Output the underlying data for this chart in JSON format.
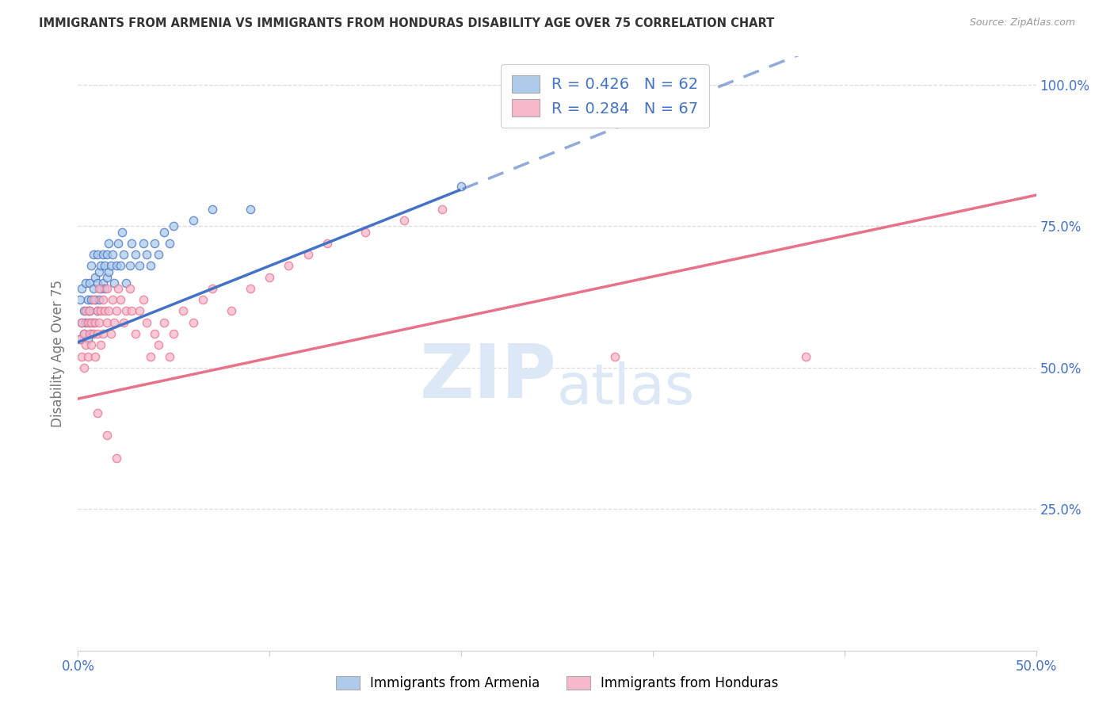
{
  "title": "IMMIGRANTS FROM ARMENIA VS IMMIGRANTS FROM HONDURAS DISABILITY AGE OVER 75 CORRELATION CHART",
  "source": "Source: ZipAtlas.com",
  "ylabel": "Disability Age Over 75",
  "xlim": [
    0.0,
    0.5
  ],
  "ylim": [
    0.0,
    1.05
  ],
  "legend_labels": [
    "Immigrants from Armenia",
    "Immigrants from Honduras"
  ],
  "R_armenia": 0.426,
  "N_armenia": 62,
  "R_honduras": 0.284,
  "N_honduras": 67,
  "color_armenia": "#aecbea",
  "color_honduras": "#f7b8cc",
  "line_color_armenia": "#4472c4",
  "line_color_honduras": "#e8728a",
  "scatter_alpha": 0.75,
  "scatter_size": 55,
  "armenia_x": [
    0.001,
    0.001,
    0.002,
    0.002,
    0.003,
    0.003,
    0.004,
    0.004,
    0.005,
    0.005,
    0.005,
    0.006,
    0.006,
    0.006,
    0.007,
    0.007,
    0.007,
    0.008,
    0.008,
    0.008,
    0.009,
    0.009,
    0.01,
    0.01,
    0.01,
    0.011,
    0.011,
    0.012,
    0.012,
    0.013,
    0.013,
    0.014,
    0.014,
    0.015,
    0.015,
    0.016,
    0.016,
    0.017,
    0.018,
    0.019,
    0.02,
    0.021,
    0.022,
    0.023,
    0.024,
    0.025,
    0.027,
    0.028,
    0.03,
    0.032,
    0.034,
    0.036,
    0.038,
    0.04,
    0.042,
    0.045,
    0.048,
    0.05,
    0.06,
    0.07,
    0.09,
    0.2
  ],
  "armenia_y": [
    0.55,
    0.62,
    0.58,
    0.64,
    0.56,
    0.6,
    0.58,
    0.65,
    0.6,
    0.55,
    0.62,
    0.6,
    0.65,
    0.58,
    0.56,
    0.62,
    0.68,
    0.58,
    0.64,
    0.7,
    0.62,
    0.66,
    0.6,
    0.65,
    0.7,
    0.62,
    0.67,
    0.64,
    0.68,
    0.65,
    0.7,
    0.64,
    0.68,
    0.66,
    0.7,
    0.67,
    0.72,
    0.68,
    0.7,
    0.65,
    0.68,
    0.72,
    0.68,
    0.74,
    0.7,
    0.65,
    0.68,
    0.72,
    0.7,
    0.68,
    0.72,
    0.7,
    0.68,
    0.72,
    0.7,
    0.74,
    0.72,
    0.75,
    0.76,
    0.78,
    0.78,
    0.82
  ],
  "honduras_x": [
    0.001,
    0.002,
    0.002,
    0.003,
    0.003,
    0.004,
    0.004,
    0.005,
    0.005,
    0.006,
    0.006,
    0.007,
    0.007,
    0.008,
    0.008,
    0.009,
    0.009,
    0.01,
    0.01,
    0.011,
    0.011,
    0.012,
    0.012,
    0.013,
    0.013,
    0.014,
    0.015,
    0.015,
    0.016,
    0.017,
    0.018,
    0.019,
    0.02,
    0.021,
    0.022,
    0.024,
    0.025,
    0.027,
    0.028,
    0.03,
    0.032,
    0.034,
    0.036,
    0.038,
    0.04,
    0.042,
    0.045,
    0.048,
    0.05,
    0.055,
    0.06,
    0.065,
    0.07,
    0.08,
    0.09,
    0.1,
    0.11,
    0.12,
    0.13,
    0.15,
    0.17,
    0.19,
    0.01,
    0.015,
    0.02,
    0.38,
    0.28
  ],
  "honduras_y": [
    0.55,
    0.52,
    0.58,
    0.5,
    0.56,
    0.54,
    0.6,
    0.52,
    0.58,
    0.56,
    0.6,
    0.54,
    0.58,
    0.56,
    0.62,
    0.58,
    0.52,
    0.56,
    0.6,
    0.58,
    0.64,
    0.6,
    0.54,
    0.62,
    0.56,
    0.6,
    0.58,
    0.64,
    0.6,
    0.56,
    0.62,
    0.58,
    0.6,
    0.64,
    0.62,
    0.58,
    0.6,
    0.64,
    0.6,
    0.56,
    0.6,
    0.62,
    0.58,
    0.52,
    0.56,
    0.54,
    0.58,
    0.52,
    0.56,
    0.6,
    0.58,
    0.62,
    0.64,
    0.6,
    0.64,
    0.66,
    0.68,
    0.7,
    0.72,
    0.74,
    0.76,
    0.78,
    0.42,
    0.38,
    0.34,
    0.52,
    0.52
  ],
  "background_color": "#ffffff",
  "grid_color": "#dddddd",
  "watermark_color": "#dce8f5",
  "arm_line_x_solid_end": 0.2,
  "hon_line_x_solid_end": 0.5,
  "arm_intercept": 0.545,
  "arm_slope": 1.35,
  "hon_intercept": 0.445,
  "hon_slope": 0.72
}
